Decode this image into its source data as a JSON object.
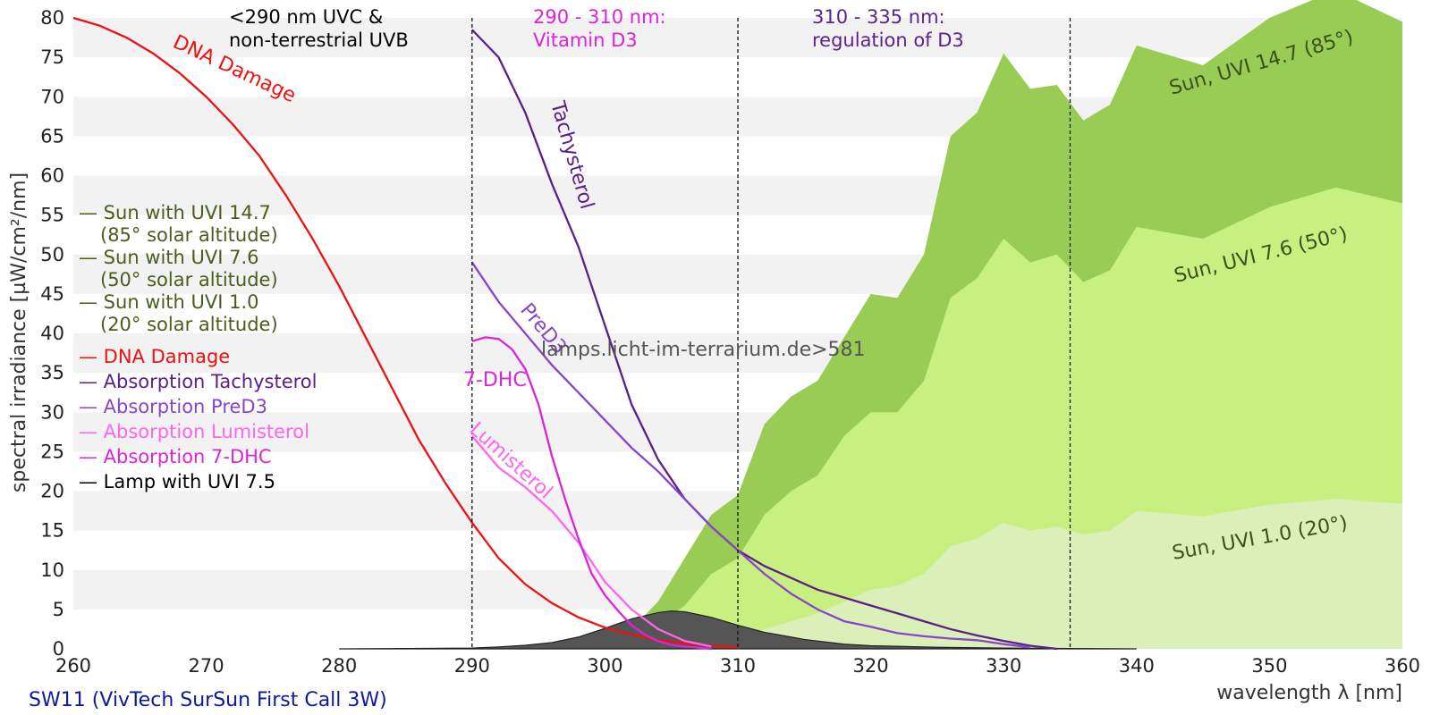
{
  "chart_data": {
    "type": "area",
    "xlabel": "wavelength λ [nm]",
    "ylabel": "spectral irradiance [µW/cm²/nm]",
    "xlim": [
      260,
      360
    ],
    "ylim": [
      0,
      80
    ],
    "x_ticks": [
      "260",
      "270",
      "280",
      "290",
      "300",
      "310",
      "320",
      "330",
      "340",
      "350",
      "360"
    ],
    "y_ticks": [
      "0",
      "5",
      "10",
      "15",
      "20",
      "25",
      "30",
      "35",
      "40",
      "45",
      "50",
      "55",
      "60",
      "65",
      "70",
      "75",
      "80"
    ],
    "grid": "horizontal alternating bands",
    "subtitle": "SW11 (VivTech SurSun First Call 3W)",
    "watermark": "lamps.licht-im-terrarium.de>581",
    "dividers": [
      290,
      310,
      335
    ],
    "region_labels": [
      {
        "lines": [
          "<290 nm UVC &",
          "non-terrestrial UVB"
        ],
        "color": "#000000"
      },
      {
        "lines": [
          "290 - 310 nm:",
          "Vitamin D3"
        ],
        "color": "#dd22dd"
      },
      {
        "lines": [
          "310 - 335 nm:",
          "regulation of D3"
        ],
        "color": "#5a2390"
      }
    ],
    "legend": [
      {
        "lines": [
          "— Sun with UVI 14.7",
          "  (85° solar altitude)"
        ],
        "color": "#4a5e1c"
      },
      {
        "lines": [
          "— Sun with UVI 7.6",
          "  (50° solar altitude)"
        ],
        "color": "#4a5e1c"
      },
      {
        "lines": [
          "— Sun with UVI 1.0",
          "  (20° solar altitude)"
        ],
        "color": "#4a5e1c"
      },
      {
        "lines": [
          "— DNA Damage"
        ],
        "color": "#ee1111"
      },
      {
        "lines": [
          "— Absorption Tachysterol"
        ],
        "color": "#5a1f8a"
      },
      {
        "lines": [
          "— Absorption PreD3"
        ],
        "color": "#8844cc"
      },
      {
        "lines": [
          "— Absorption Lumisterol"
        ],
        "color": "#ff66ee"
      },
      {
        "lines": [
          "— Absorption 7-DHC"
        ],
        "color": "#dd22dd"
      },
      {
        "lines": [
          "— Lamp with UVI 7.5"
        ],
        "color": "#000000"
      }
    ],
    "areas": [
      {
        "name": "Sun, UVI 14.7 (85°)",
        "color": "#99cc55",
        "label_color": "#3d4f1a",
        "x": [
          302,
          304,
          306,
          308,
          310,
          312,
          314,
          316,
          318,
          320,
          322,
          324,
          326,
          328,
          330,
          332,
          334,
          336,
          338,
          340,
          345,
          350,
          355,
          360
        ],
        "y": [
          2.5,
          6,
          11.5,
          17,
          19.5,
          28.5,
          32,
          34,
          39.5,
          45,
          44.5,
          50,
          65,
          68,
          75.5,
          71,
          71.5,
          67,
          69,
          76.5,
          74,
          80,
          83.5,
          79.5
        ]
      },
      {
        "name": "Sun, UVI 7.6 (50°)",
        "color": "#c8f080",
        "label_color": "#3d4f1a",
        "x": [
          304,
          306,
          308,
          310,
          312,
          314,
          316,
          318,
          320,
          322,
          324,
          326,
          328,
          330,
          332,
          334,
          336,
          338,
          340,
          345,
          350,
          355,
          360
        ],
        "y": [
          3,
          5.5,
          9.5,
          11.5,
          17,
          20,
          22,
          27,
          30,
          30,
          34,
          44.5,
          47,
          52,
          49,
          50,
          46.5,
          48,
          53.5,
          52,
          56,
          58.5,
          56.5
        ]
      },
      {
        "name": "Sun, UVI 1.0 (20°)",
        "color": "#daf0b8",
        "label_color": "#3d4f1a",
        "x": [
          308,
          310,
          312,
          314,
          316,
          318,
          320,
          322,
          324,
          326,
          328,
          330,
          332,
          334,
          336,
          338,
          340,
          345,
          350,
          355,
          360
        ],
        "y": [
          0.8,
          1.5,
          2.5,
          3.5,
          4.5,
          6,
          7.5,
          8,
          9.5,
          13,
          14,
          16,
          15,
          15.5,
          14.5,
          15,
          17.5,
          16.8,
          18.3,
          19,
          18.4
        ]
      },
      {
        "name": "Lamp with UVI 7.5",
        "color": "#555555",
        "label_color": "#000000",
        "x": [
          280,
          285,
          290,
          292,
          294,
          296,
          298,
          300,
          302,
          304,
          305,
          306,
          308,
          310,
          312,
          315,
          318,
          320,
          325,
          330,
          335,
          340
        ],
        "y": [
          0,
          0.05,
          0.1,
          0.25,
          0.45,
          0.8,
          1.5,
          2.6,
          3.8,
          4.6,
          4.8,
          4.7,
          4,
          3,
          2.1,
          1.2,
          0.6,
          0.4,
          0.2,
          0.1,
          0.05,
          0
        ]
      }
    ],
    "series": [
      {
        "name": "DNA Damage",
        "label": "DNA Damage",
        "color": "#ee1111",
        "x": [
          260,
          262,
          264,
          266,
          268,
          270,
          272,
          274,
          276,
          278,
          280,
          282,
          284,
          286,
          288,
          290,
          292,
          294,
          296,
          298,
          300,
          302,
          304,
          306,
          308,
          310
        ],
        "y": [
          80,
          79,
          77.5,
          75.5,
          73,
          70,
          66.5,
          62.5,
          57.5,
          52,
          46,
          39.5,
          33,
          26.5,
          21,
          16,
          11.5,
          8.2,
          5.8,
          4,
          2.7,
          1.8,
          1.1,
          0.7,
          0.4,
          0.2
        ]
      },
      {
        "name": "Absorption Tachysterol",
        "label": "Tachysterol",
        "color": "#5a1f8a",
        "x": [
          290,
          292,
          294,
          296,
          298,
          300,
          302,
          304,
          306,
          308,
          310,
          312,
          314,
          316,
          318,
          320,
          322,
          324,
          326,
          328,
          330,
          332,
          334
        ],
        "y": [
          78.5,
          75,
          68,
          59,
          51,
          41,
          31,
          24,
          19,
          15.5,
          12.5,
          10.5,
          9,
          7.5,
          6.5,
          5.5,
          4.5,
          3.5,
          2.5,
          1.7,
          1,
          0.4,
          0
        ]
      },
      {
        "name": "Absorption PreD3",
        "label": "PreD3",
        "color": "#8844cc",
        "x": [
          290,
          292,
          294,
          296,
          298,
          300,
          302,
          304,
          306,
          308,
          310,
          312,
          314,
          316,
          318,
          320,
          322,
          324,
          326,
          328,
          330,
          332
        ],
        "y": [
          49,
          44,
          40,
          36,
          32.5,
          29,
          25.5,
          22.5,
          19,
          15.5,
          12.5,
          9.5,
          7,
          5,
          3.5,
          2.8,
          2,
          1.6,
          1.3,
          1.1,
          0.6,
          0.2
        ]
      },
      {
        "name": "Absorption Lumisterol",
        "label": "Lumisterol",
        "color": "#ff66ee",
        "x": [
          290,
          292,
          294,
          296,
          298,
          300,
          302,
          304,
          306,
          308
        ],
        "y": [
          27,
          23,
          20.5,
          17.5,
          13.5,
          8.5,
          5,
          2.5,
          1,
          0.3
        ]
      },
      {
        "name": "Absorption 7-DHC",
        "label": "7-DHC",
        "color": "#dd22dd",
        "x": [
          290,
          291,
          292,
          293,
          294,
          295,
          296,
          297,
          298,
          299,
          300,
          301,
          302,
          303,
          304,
          305,
          306,
          307,
          308
        ],
        "y": [
          39,
          39.5,
          39.3,
          38,
          35.5,
          31,
          24.5,
          19,
          14,
          9.5,
          6.8,
          4.8,
          3,
          1.8,
          1,
          0.5,
          0.3,
          0.15,
          0
        ]
      }
    ]
  }
}
